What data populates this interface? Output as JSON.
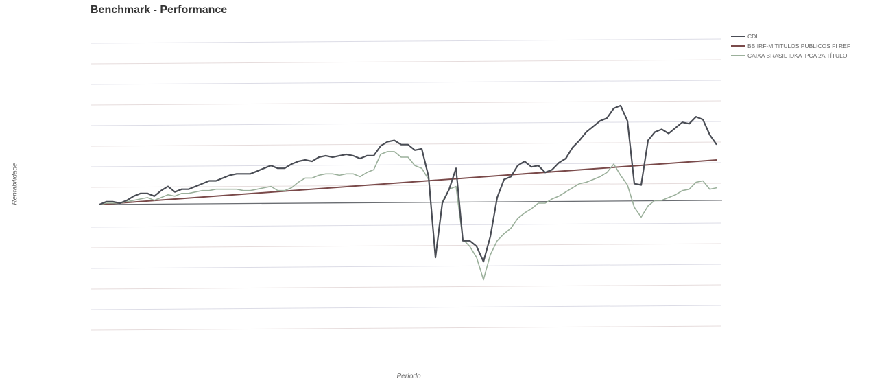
{
  "chart_data": {
    "type": "line",
    "title": "Benchmark - Performance",
    "xlabel": "Período",
    "ylabel": "Rentabilidade",
    "n_points": 91,
    "ylim": [
      -6,
      7
    ],
    "grid": true,
    "legend_position": "top-right",
    "series": [
      {
        "name": "CDI",
        "color": "#4a4d55",
        "values": [
          0.0,
          0.2,
          0.2,
          0.1,
          0.3,
          0.6,
          0.8,
          0.8,
          0.6,
          1.0,
          1.3,
          0.9,
          1.1,
          1.1,
          1.3,
          1.5,
          1.7,
          1.7,
          1.9,
          2.1,
          2.2,
          2.2,
          2.2,
          2.4,
          2.6,
          2.8,
          2.6,
          2.6,
          2.9,
          3.1,
          3.2,
          3.1,
          3.4,
          3.5,
          3.4,
          3.5,
          3.6,
          3.5,
          3.3,
          3.5,
          3.5,
          4.2,
          4.5,
          4.6,
          4.3,
          4.3,
          3.9,
          4.0,
          2.0,
          -3.8,
          0.1,
          1.1,
          2.6,
          -2.6,
          -2.6,
          -3.0,
          -4.1,
          -2.3,
          0.5,
          1.8,
          2.0,
          2.8,
          3.1,
          2.7,
          2.8,
          2.3,
          2.5,
          3.0,
          3.3,
          4.1,
          4.6,
          5.2,
          5.6,
          6.0,
          6.2,
          6.9,
          7.1,
          6.0,
          1.5,
          1.4,
          4.6,
          5.2,
          5.4,
          5.1,
          5.5,
          5.9,
          5.8,
          6.3,
          6.1,
          5.0,
          4.3
        ]
      },
      {
        "name": "BB IRF-M TITULOS PUBLICOS FI REF",
        "color": "#7a4a4a",
        "start": 0.0,
        "end": 3.2
      },
      {
        "name": "CAIXA BRASIL IDKA IPCA 2A TÍTULO",
        "color": "#9bb09b",
        "values": [
          0.0,
          0.1,
          0.1,
          0.1,
          0.2,
          0.3,
          0.4,
          0.5,
          0.3,
          0.5,
          0.7,
          0.6,
          0.8,
          0.8,
          0.9,
          1.0,
          1.0,
          1.1,
          1.1,
          1.1,
          1.1,
          1.0,
          1.0,
          1.1,
          1.2,
          1.3,
          1.0,
          1.0,
          1.2,
          1.6,
          1.9,
          1.9,
          2.1,
          2.2,
          2.2,
          2.1,
          2.2,
          2.2,
          2.0,
          2.3,
          2.5,
          3.6,
          3.8,
          3.8,
          3.4,
          3.4,
          2.8,
          2.6,
          1.8,
          -3.7,
          0.2,
          1.1,
          1.3,
          -2.5,
          -3.0,
          -3.8,
          -5.4,
          -3.6,
          -2.6,
          -2.1,
          -1.7,
          -1.0,
          -0.6,
          -0.3,
          0.1,
          0.1,
          0.4,
          0.6,
          0.9,
          1.2,
          1.5,
          1.6,
          1.8,
          2.0,
          2.3,
          2.9,
          2.1,
          1.4,
          -0.2,
          -0.9,
          -0.1,
          0.3,
          0.3,
          0.5,
          0.7,
          1.0,
          1.1,
          1.6,
          1.7,
          1.1,
          1.2
        ]
      },
      {
        "name": "",
        "color": "#6a6d72",
        "start": 0.0,
        "end": 0.3
      }
    ]
  }
}
